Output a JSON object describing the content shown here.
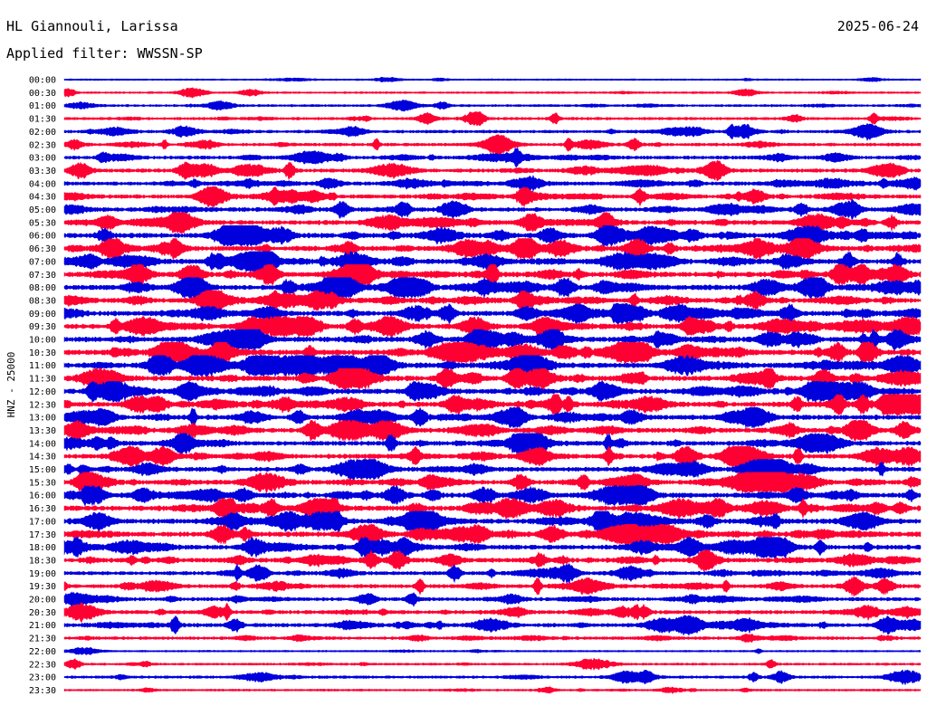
{
  "header": {
    "station": "HL Giannouli, Larissa",
    "date": "2025-06-24",
    "filter": "Applied filter: WWSSN-SP"
  },
  "chart_data": {
    "type": "line",
    "ylabel": "HNZ - 25000",
    "colors": [
      "#0000dd",
      "#ff0033"
    ],
    "rows": [
      {
        "time": "00:00",
        "activity": 0.05
      },
      {
        "time": "00:30",
        "activity": 0.12
      },
      {
        "time": "01:00",
        "activity": 0.22
      },
      {
        "time": "01:30",
        "activity": 0.33
      },
      {
        "time": "02:00",
        "activity": 0.4
      },
      {
        "time": "02:30",
        "activity": 0.42
      },
      {
        "time": "03:00",
        "activity": 0.52
      },
      {
        "time": "03:30",
        "activity": 0.58
      },
      {
        "time": "04:00",
        "activity": 0.62
      },
      {
        "time": "04:30",
        "activity": 0.66
      },
      {
        "time": "05:00",
        "activity": 0.72
      },
      {
        "time": "05:30",
        "activity": 0.8
      },
      {
        "time": "06:00",
        "activity": 0.88
      },
      {
        "time": "06:30",
        "activity": 0.9
      },
      {
        "time": "07:00",
        "activity": 0.92
      },
      {
        "time": "07:30",
        "activity": 0.92
      },
      {
        "time": "08:00",
        "activity": 0.92
      },
      {
        "time": "08:30",
        "activity": 0.85
      },
      {
        "time": "09:00",
        "activity": 0.88
      },
      {
        "time": "09:30",
        "activity": 0.92
      },
      {
        "time": "10:00",
        "activity": 0.95
      },
      {
        "time": "10:30",
        "activity": 1.0
      },
      {
        "time": "11:00",
        "activity": 1.0
      },
      {
        "time": "11:30",
        "activity": 1.0
      },
      {
        "time": "12:00",
        "activity": 0.95
      },
      {
        "time": "12:30",
        "activity": 0.92
      },
      {
        "time": "13:00",
        "activity": 0.88
      },
      {
        "time": "13:30",
        "activity": 0.82
      },
      {
        "time": "14:00",
        "activity": 0.8
      },
      {
        "time": "14:30",
        "activity": 0.82
      },
      {
        "time": "15:00",
        "activity": 0.8
      },
      {
        "time": "15:30",
        "activity": 0.82
      },
      {
        "time": "16:00",
        "activity": 0.9
      },
      {
        "time": "16:30",
        "activity": 0.92
      },
      {
        "time": "17:00",
        "activity": 0.9
      },
      {
        "time": "17:30",
        "activity": 0.92
      },
      {
        "time": "18:00",
        "activity": 0.82
      },
      {
        "time": "18:30",
        "activity": 0.78
      },
      {
        "time": "19:00",
        "activity": 0.6
      },
      {
        "time": "19:30",
        "activity": 0.62
      },
      {
        "time": "20:00",
        "activity": 0.55
      },
      {
        "time": "20:30",
        "activity": 0.58
      },
      {
        "time": "21:00",
        "activity": 0.62
      },
      {
        "time": "21:30",
        "activity": 0.4
      },
      {
        "time": "22:00",
        "activity": 0.08
      },
      {
        "time": "22:30",
        "activity": 0.2
      },
      {
        "time": "23:00",
        "activity": 0.32
      },
      {
        "time": "23:30",
        "activity": 0.15
      }
    ]
  }
}
